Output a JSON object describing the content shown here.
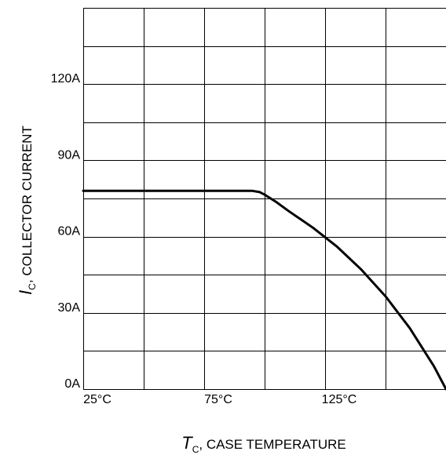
{
  "chart_data": {
    "type": "line",
    "xlabel": {
      "symbol": "T",
      "subscript": "C",
      "text": ", CASE TEMPERATURE"
    },
    "ylabel": {
      "symbol": "I",
      "subscript": "C",
      "text": ", COLLECTOR CURRENT"
    },
    "xlim": [
      25,
      175
    ],
    "ylim": [
      0,
      150
    ],
    "x_ticks": [
      {
        "value": 25,
        "label": "25°C"
      },
      {
        "value": 75,
        "label": "75°C"
      },
      {
        "value": 125,
        "label": "125°C"
      }
    ],
    "y_ticks": [
      {
        "value": 0,
        "label": "0A"
      },
      {
        "value": 30,
        "label": "30A"
      },
      {
        "value": 60,
        "label": "60A"
      },
      {
        "value": 90,
        "label": "90A"
      },
      {
        "value": 120,
        "label": "120A"
      }
    ],
    "x_grid_step": 25,
    "y_grid_step": 15,
    "grid": true,
    "series": [
      {
        "x": [
          25,
          40,
          60,
          80,
          95,
          98,
          100,
          105,
          110,
          120,
          130,
          140,
          150,
          160,
          170,
          175
        ],
        "y": [
          78,
          78,
          78,
          78,
          78,
          77.5,
          76.5,
          73.5,
          70,
          63.5,
          56,
          47,
          36.5,
          24,
          9,
          0
        ],
        "color": "#000000"
      }
    ]
  }
}
